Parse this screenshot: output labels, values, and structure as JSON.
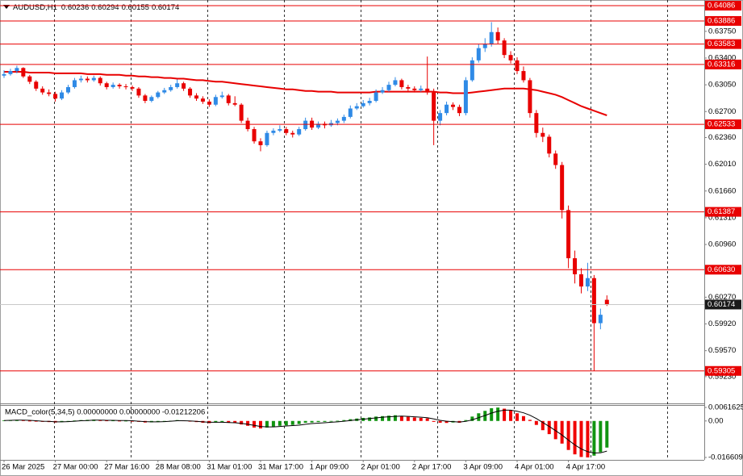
{
  "chart_data": [
    {
      "type": "candlestick",
      "title": "AUDUSD,H1",
      "categories": [
        "26 Mar 2025",
        null,
        null,
        null,
        null,
        null,
        null,
        null,
        "27 Mar 00:00",
        null,
        null,
        null,
        null,
        null,
        null,
        null,
        "27 Mar 16:00",
        null,
        null,
        null,
        null,
        null,
        null,
        null,
        "28 Mar 08:00",
        null,
        null,
        null,
        null,
        null,
        null,
        null,
        "31 Mar 01:00",
        null,
        null,
        null,
        null,
        null,
        null,
        null,
        "31 Mar 17:00",
        null,
        null,
        null,
        null,
        null,
        null,
        null,
        "1 Apr 09:00",
        null,
        null,
        null,
        null,
        null,
        null,
        null,
        "2 Apr 01:00",
        null,
        null,
        null,
        null,
        null,
        null,
        null,
        "2 Apr 17:00",
        null,
        null,
        null,
        null,
        null,
        null,
        null,
        "3 Apr 09:00",
        null,
        null,
        null,
        null,
        null,
        null,
        null,
        "4 Apr 01:00",
        null,
        null,
        null,
        null,
        null,
        null,
        null,
        "4 Apr 17:00",
        null,
        null,
        null,
        null,
        null,
        null
      ],
      "candles": [
        [
          0.6317,
          0.6324,
          0.6314,
          0.6319
        ],
        [
          0.6319,
          0.6326,
          0.6317,
          0.6323
        ],
        [
          0.6323,
          0.633,
          0.632,
          0.6327
        ],
        [
          0.6327,
          0.6328,
          0.6314,
          0.6316
        ],
        [
          0.6316,
          0.6318,
          0.6306,
          0.6309
        ],
        [
          0.6309,
          0.6311,
          0.6297,
          0.63
        ],
        [
          0.63,
          0.6303,
          0.6292,
          0.6295
        ],
        [
          0.6295,
          0.6299,
          0.629,
          0.6293
        ],
        [
          0.6293,
          0.6296,
          0.6283,
          0.6287
        ],
        [
          0.6287,
          0.6298,
          0.6285,
          0.6295
        ],
        [
          0.6295,
          0.6305,
          0.6293,
          0.6302
        ],
        [
          0.6302,
          0.6314,
          0.63,
          0.6311
        ],
        [
          0.6311,
          0.6317,
          0.6308,
          0.6313
        ],
        [
          0.6313,
          0.6316,
          0.6308,
          0.6311
        ],
        [
          0.6311,
          0.6317,
          0.6309,
          0.6314
        ],
        [
          0.6314,
          0.6316,
          0.6304,
          0.6307
        ],
        [
          0.6307,
          0.6309,
          0.6299,
          0.6302
        ],
        [
          0.6302,
          0.6308,
          0.63,
          0.6305
        ],
        [
          0.6305,
          0.6307,
          0.63,
          0.6303
        ],
        [
          0.6303,
          0.6306,
          0.6299,
          0.6302
        ],
        [
          0.6302,
          0.6304,
          0.6297,
          0.63
        ],
        [
          0.63,
          0.6302,
          0.6288,
          0.6291
        ],
        [
          0.6291,
          0.6293,
          0.6281,
          0.6284
        ],
        [
          0.6284,
          0.6291,
          0.6282,
          0.6289
        ],
        [
          0.6289,
          0.6297,
          0.6287,
          0.6295
        ],
        [
          0.6295,
          0.6301,
          0.6293,
          0.6298
        ],
        [
          0.6298,
          0.6305,
          0.6296,
          0.6302
        ],
        [
          0.6302,
          0.6312,
          0.63,
          0.6307
        ],
        [
          0.6307,
          0.6309,
          0.6297,
          0.63
        ],
        [
          0.63,
          0.6302,
          0.6288,
          0.6291
        ],
        [
          0.6291,
          0.6294,
          0.6284,
          0.6287
        ],
        [
          0.6287,
          0.629,
          0.628,
          0.6283
        ],
        [
          0.6283,
          0.6286,
          0.6276,
          0.6279
        ],
        [
          0.6279,
          0.6292,
          0.6277,
          0.6289
        ],
        [
          0.6289,
          0.6296,
          0.6287,
          0.6291
        ],
        [
          0.6291,
          0.6293,
          0.6278,
          0.6281
        ],
        [
          0.6281,
          0.629,
          0.6277,
          0.6279
        ],
        [
          0.6279,
          0.6281,
          0.6255,
          0.6258
        ],
        [
          0.6258,
          0.6262,
          0.6244,
          0.6247
        ],
        [
          0.6247,
          0.625,
          0.6228,
          0.6231
        ],
        [
          0.6231,
          0.6235,
          0.6218,
          0.6226
        ],
        [
          0.6226,
          0.6245,
          0.6224,
          0.6242
        ],
        [
          0.6242,
          0.6248,
          0.6239,
          0.6245
        ],
        [
          0.6245,
          0.6252,
          0.6243,
          0.6247
        ],
        [
          0.6247,
          0.625,
          0.6239,
          0.6242
        ],
        [
          0.6242,
          0.6245,
          0.6236,
          0.624
        ],
        [
          0.624,
          0.625,
          0.6238,
          0.6247
        ],
        [
          0.6247,
          0.6262,
          0.6245,
          0.6258
        ],
        [
          0.6258,
          0.6262,
          0.6246,
          0.6249
        ],
        [
          0.6249,
          0.6257,
          0.6247,
          0.6254
        ],
        [
          0.6254,
          0.6257,
          0.6248,
          0.6252
        ],
        [
          0.6252,
          0.6259,
          0.625,
          0.6255
        ],
        [
          0.6255,
          0.6261,
          0.6252,
          0.6258
        ],
        [
          0.6258,
          0.6266,
          0.6255,
          0.6263
        ],
        [
          0.6263,
          0.6278,
          0.6261,
          0.6274
        ],
        [
          0.6274,
          0.6281,
          0.6272,
          0.6277
        ],
        [
          0.6277,
          0.6285,
          0.6275,
          0.6281
        ],
        [
          0.6281,
          0.6288,
          0.6278,
          0.6284
        ],
        [
          0.6284,
          0.6299,
          0.6282,
          0.6295
        ],
        [
          0.6295,
          0.6302,
          0.6293,
          0.6298
        ],
        [
          0.6298,
          0.6309,
          0.6296,
          0.6305
        ],
        [
          0.6305,
          0.6315,
          0.6303,
          0.6311
        ],
        [
          0.6311,
          0.6313,
          0.6299,
          0.6302
        ],
        [
          0.6302,
          0.6305,
          0.6297,
          0.63
        ],
        [
          0.63,
          0.6303,
          0.6295,
          0.6298
        ],
        [
          0.6298,
          0.6304,
          0.6296,
          0.63
        ],
        [
          0.63,
          0.6342,
          0.6292,
          0.6295
        ],
        [
          0.6295,
          0.63,
          0.6226,
          0.6258
        ],
        [
          0.6258,
          0.6272,
          0.6252,
          0.6268
        ],
        [
          0.6268,
          0.6283,
          0.6265,
          0.6279
        ],
        [
          0.6279,
          0.6282,
          0.6272,
          0.6276
        ],
        [
          0.6276,
          0.6279,
          0.6264,
          0.6268
        ],
        [
          0.6268,
          0.6315,
          0.6265,
          0.6311
        ],
        [
          0.6311,
          0.6341,
          0.6309,
          0.6337
        ],
        [
          0.6337,
          0.6358,
          0.6334,
          0.6353
        ],
        [
          0.6353,
          0.6366,
          0.6348,
          0.6358
        ],
        [
          0.6358,
          0.6387,
          0.6355,
          0.6374
        ],
        [
          0.6374,
          0.638,
          0.6359,
          0.6363
        ],
        [
          0.6363,
          0.6366,
          0.634,
          0.6344
        ],
        [
          0.6344,
          0.6349,
          0.6333,
          0.6337
        ],
        [
          0.6337,
          0.6341,
          0.6319,
          0.6323
        ],
        [
          0.6323,
          0.6329,
          0.6308,
          0.6311
        ],
        [
          0.6311,
          0.6314,
          0.6262,
          0.6268
        ],
        [
          0.6268,
          0.6272,
          0.6236,
          0.6242
        ],
        [
          0.6242,
          0.6249,
          0.623,
          0.6237
        ],
        [
          0.6237,
          0.624,
          0.621,
          0.6215
        ],
        [
          0.6215,
          0.6219,
          0.6195,
          0.62
        ],
        [
          0.62,
          0.6204,
          0.613,
          0.6141
        ],
        [
          0.6141,
          0.6147,
          0.6065,
          0.6078
        ],
        [
          0.6078,
          0.6088,
          0.6045,
          0.6057
        ],
        [
          0.6057,
          0.6065,
          0.6032,
          0.6041
        ],
        [
          0.6041,
          0.6072,
          0.6035,
          0.6052
        ],
        [
          0.6052,
          0.6056,
          0.59305,
          0.5993
        ],
        [
          0.5993,
          0.6012,
          0.5985,
          0.6004
        ],
        [
          0.60236,
          0.60294,
          0.60155,
          0.60174
        ]
      ],
      "up_color": "#2f8ae6",
      "down_color": "#e80000",
      "lines": [
        {
          "color": "#e80000",
          "values": [
            0.6322,
            0.6322,
            0.6322,
            0.6322,
            0.6321,
            0.6321,
            0.6321,
            0.6321,
            0.632,
            0.632,
            0.632,
            0.632,
            0.632,
            0.6319,
            0.6319,
            0.6319,
            0.6318,
            0.6318,
            0.6318,
            0.6317,
            0.6317,
            0.6316,
            0.6316,
            0.6315,
            0.6315,
            0.6314,
            0.6314,
            0.6313,
            0.6313,
            0.6312,
            0.6311,
            0.6311,
            0.631,
            0.6309,
            0.6309,
            0.6308,
            0.6307,
            0.6306,
            0.6305,
            0.6304,
            0.6303,
            0.6302,
            0.6301,
            0.63,
            0.6299,
            0.6299,
            0.6298,
            0.6297,
            0.6297,
            0.6296,
            0.6296,
            0.6296,
            0.6295,
            0.6295,
            0.6295,
            0.6295,
            0.6295,
            0.6295,
            0.6296,
            0.6296,
            0.6296,
            0.6296,
            0.6296,
            0.6296,
            0.6296,
            0.6296,
            0.6296,
            0.6296,
            0.6295,
            0.6295,
            0.6294,
            0.6294,
            0.6294,
            0.6295,
            0.6296,
            0.6297,
            0.6298,
            0.6299,
            0.63,
            0.63,
            0.63,
            0.63,
            0.6299,
            0.6298,
            0.6296,
            0.6294,
            0.6292,
            0.6289,
            0.6285,
            0.6281,
            0.6277,
            0.6274,
            0.6271,
            0.6268,
            0.6265
          ]
        }
      ],
      "levels": [
        0.64086,
        0.63886,
        0.63583,
        0.63316,
        0.62533,
        0.61387,
        {
          "value": 0.6063,
          "label": "0.60630"
        },
        0.59305
      ],
      "level_color": "#e80000",
      "current_color": "#c8c8c8",
      "ylim": [
        0.5888,
        0.6416
      ],
      "yticks": [
        {
          "value": 0.6375,
          "label": "0.63750"
        },
        {
          "value": 0.634,
          "label": "0.63400"
        },
        {
          "value": 0.6305,
          "label": "0.63050"
        },
        {
          "value": 0.627,
          "label": "0.62700"
        },
        {
          "value": 0.6236,
          "label": "0.62360"
        },
        {
          "value": 0.6201,
          "label": "0.62010"
        },
        {
          "value": 0.6166,
          "label": "0.61660"
        },
        {
          "value": 0.6131,
          "label": "0.61310"
        },
        {
          "value": 0.6096,
          "label": "0.60960"
        },
        {
          "value": 0.6027,
          "label": "0.60270"
        },
        {
          "value": 0.5992,
          "label": "0.59920"
        },
        {
          "value": 0.5957,
          "label": "0.59570"
        },
        {
          "value": 0.5923,
          "label": "0.59230"
        }
      ]
    },
    {
      "type": "macd",
      "title": "MACD_color(5,34,5) 0.00000000 0.00000000 -0.01212206",
      "values": [
        0.0003,
        0.0004,
        0.0005,
        0.0003,
        0.0001,
        -0.0002,
        -0.0004,
        -0.0005,
        -0.0007,
        -0.0005,
        -0.0002,
        0.0002,
        0.0004,
        0.0005,
        0.0006,
        0.0004,
        0.0002,
        0.0002,
        0.0001,
        0.0001,
        -0.0001,
        -0.0004,
        -0.0007,
        -0.0006,
        -0.0004,
        -0.0002,
        0.0001,
        0.0004,
        0.0002,
        -0.0002,
        -0.0005,
        -0.0008,
        -0.001,
        -0.0007,
        -0.0005,
        -0.0008,
        -0.001,
        -0.0016,
        -0.0022,
        -0.003,
        -0.0034,
        -0.003,
        -0.0026,
        -0.0022,
        -0.002,
        -0.0018,
        -0.0014,
        -0.0008,
        -0.0007,
        -0.0005,
        -0.0004,
        -0.0002,
        0.0001,
        0.0004,
        0.0008,
        0.0011,
        0.0014,
        0.0016,
        0.002,
        0.0022,
        0.0024,
        0.0026,
        0.0022,
        0.0019,
        0.0016,
        0.0014,
        0.0012,
        -0.0004,
        -0.0008,
        -0.0009,
        -0.0007,
        -0.0008,
        0.0004,
        0.002,
        0.0035,
        0.0046,
        0.0058,
        0.0061,
        0.0056,
        0.0048,
        0.0035,
        0.0022,
        0.0005,
        -0.0018,
        -0.0042,
        -0.006,
        -0.0083,
        -0.0103,
        -0.0132,
        -0.0152,
        -0.0164,
        -0.0166,
        -0.0158,
        -0.0142,
        -0.01212206
      ],
      "signal": [
        0.0002,
        0.0003,
        0.0004,
        0.0004,
        0.0003,
        0.0001,
        -0.0001,
        -0.0002,
        -0.0004,
        -0.0004,
        -0.0003,
        -0.0001,
        0.0001,
        0.0002,
        0.0004,
        0.0004,
        0.0003,
        0.0003,
        0.0002,
        0.0002,
        0.0001,
        -0.0001,
        -0.0003,
        -0.0004,
        -0.0004,
        -0.0003,
        -0.0001,
        0.0001,
        0.0001,
        0,
        -0.0002,
        -0.0004,
        -0.0006,
        -0.0006,
        -0.0006,
        -0.0007,
        -0.0008,
        -0.0011,
        -0.0015,
        -0.002,
        -0.0025,
        -0.0027,
        -0.0027,
        -0.0025,
        -0.0023,
        -0.0021,
        -0.0019,
        -0.0015,
        -0.0012,
        -0.001,
        -0.0008,
        -0.0006,
        -0.0004,
        -0.0001,
        0.0002,
        0.0005,
        0.0008,
        0.0011,
        0.0014,
        0.0017,
        0.0019,
        0.0021,
        0.0022,
        0.0021,
        0.0019,
        0.0017,
        0.0015,
        0.0009,
        0.0003,
        -0.0001,
        -0.0003,
        -0.0005,
        -0.0002,
        0.0005,
        0.0015,
        0.0025,
        0.0036,
        0.0044,
        0.0049,
        0.0049,
        0.0044,
        0.0037,
        0.0026,
        0.0011,
        -0.0007,
        -0.0025,
        -0.0044,
        -0.0064,
        -0.0087,
        -0.0109,
        -0.0127,
        -0.014,
        -0.0146,
        -0.0145,
        -0.0137
      ],
      "up_color": "#119411",
      "down_color": "#f00000",
      "signal_color": "#000000",
      "ylim": [
        -0.0166093,
        0.0061625
      ],
      "yticks": [
        0.0061625,
        {
          "value": 0,
          "label": "0.00"
        },
        -0.0166093
      ]
    }
  ]
}
